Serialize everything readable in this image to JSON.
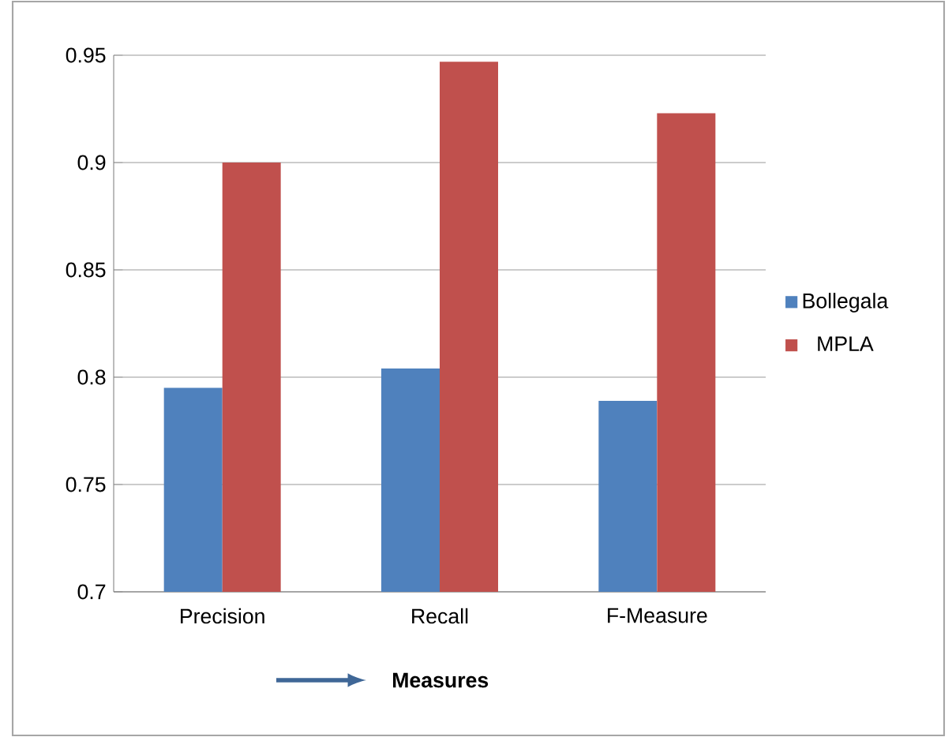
{
  "chart_data": {
    "type": "bar",
    "xlabel": "Measures",
    "categories": [
      "Precision",
      "Recall",
      "F-Measure"
    ],
    "series": [
      {
        "name": "Bollegala",
        "color": "#4f81bd",
        "values": [
          0.795,
          0.804,
          0.789
        ]
      },
      {
        "name": "MPLA",
        "color": "#c0504d",
        "values": [
          0.9,
          0.947,
          0.923
        ]
      }
    ],
    "ylim": [
      0.7,
      0.95
    ],
    "yticks": [
      0.7,
      0.75,
      0.8,
      0.85,
      0.9,
      0.95
    ],
    "grid": "y",
    "legend": "right"
  }
}
